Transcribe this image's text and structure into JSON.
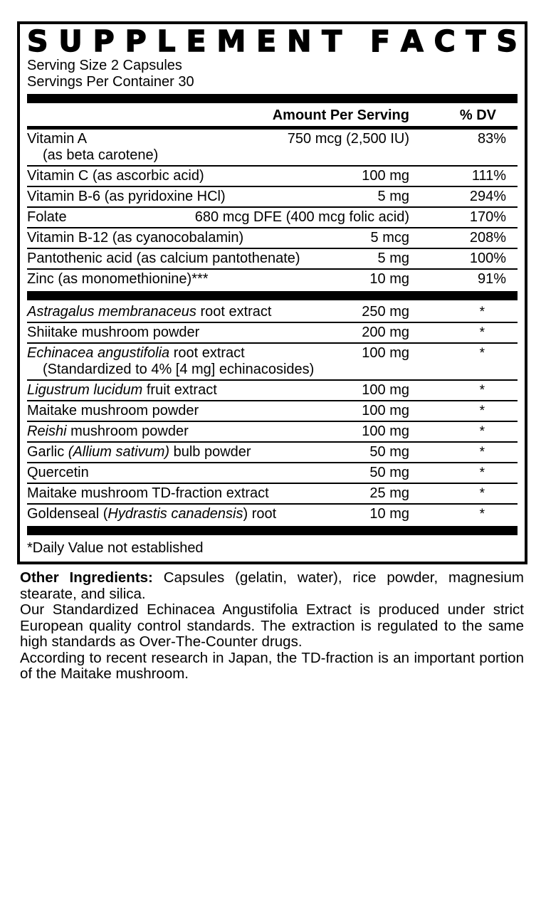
{
  "title": "SUPPLEMENT FACTS",
  "serving": {
    "size": "Serving Size 2 Capsules",
    "per_container": "Servings Per Container 30"
  },
  "table": {
    "headers": {
      "amount": "Amount Per Serving",
      "dv": "% DV"
    },
    "sections": [
      {
        "name": "vitamins-minerals",
        "rows": [
          {
            "name_parts": [
              {
                "text": "Vitamin A"
              }
            ],
            "sub": "(as beta carotene)",
            "amount": "750 mcg (2,500 IU)",
            "dv": "83%"
          },
          {
            "name_parts": [
              {
                "text": "Vitamin C (as ascorbic acid)"
              }
            ],
            "amount": "100 mg",
            "dv": "111%"
          },
          {
            "name_parts": [
              {
                "text": "Vitamin B-6 (as pyridoxine HCl)"
              }
            ],
            "amount": "5 mg",
            "dv": "294%"
          },
          {
            "name_parts": [
              {
                "text": "Folate"
              }
            ],
            "amount": "680 mcg DFE (400 mcg folic acid)",
            "dv": "170%"
          },
          {
            "name_parts": [
              {
                "text": "Vitamin B-12 (as cyanocobalamin)"
              }
            ],
            "amount": "5 mcg",
            "dv": "208%"
          },
          {
            "name_parts": [
              {
                "text": "Pantothenic acid (as calcium pantothenate)"
              }
            ],
            "amount": "5 mg",
            "dv": "100%"
          },
          {
            "name_parts": [
              {
                "text": "Zinc (as monomethionine)***"
              }
            ],
            "amount": "10 mg",
            "dv": "91%"
          }
        ]
      },
      {
        "name": "botanicals",
        "rows": [
          {
            "name_parts": [
              {
                "text": "Astragalus membranaceus",
                "italic": true
              },
              {
                "text": " root extract"
              }
            ],
            "amount": "250 mg",
            "dv": "*"
          },
          {
            "name_parts": [
              {
                "text": "Shiitake mushroom powder"
              }
            ],
            "amount": "200 mg",
            "dv": "*"
          },
          {
            "name_parts": [
              {
                "text": "Echinacea angustifolia",
                "italic": true
              },
              {
                "text": " root extract"
              }
            ],
            "sub": "(Standardized to 4% [4 mg] echinacosides)",
            "amount": "100 mg",
            "dv": "*"
          },
          {
            "name_parts": [
              {
                "text": "Ligustrum lucidum",
                "italic": true
              },
              {
                "text": " fruit extract"
              }
            ],
            "amount": "100 mg",
            "dv": "*"
          },
          {
            "name_parts": [
              {
                "text": "Maitake mushroom powder"
              }
            ],
            "amount": "100 mg",
            "dv": "*"
          },
          {
            "name_parts": [
              {
                "text": "Reishi",
                "italic": true
              },
              {
                "text": " mushroom powder"
              }
            ],
            "amount": "100 mg",
            "dv": "*"
          },
          {
            "name_parts": [
              {
                "text": "Garlic "
              },
              {
                "text": "(Allium sativum)",
                "italic": true
              },
              {
                "text": " bulb powder"
              }
            ],
            "amount": "50 mg",
            "dv": "*"
          },
          {
            "name_parts": [
              {
                "text": "Quercetin"
              }
            ],
            "amount": "50 mg",
            "dv": "*"
          },
          {
            "name_parts": [
              {
                "text": "Maitake mushroom TD-fraction extract"
              }
            ],
            "amount": "25 mg",
            "dv": "*"
          },
          {
            "name_parts": [
              {
                "text": "Goldenseal ("
              },
              {
                "text": "Hydrastis canadensis",
                "italic": true
              },
              {
                "text": ") root"
              }
            ],
            "amount": "10 mg",
            "dv": "*"
          }
        ]
      }
    ],
    "footnote": "*Daily Value not established"
  },
  "footer": {
    "paragraphs": [
      {
        "bold": "Other Ingredients:",
        "text": " Capsules (gelatin, water), rice powder, magnesium stearate, and silica."
      },
      {
        "text": "Our Standardized Echinacea Angustifolia Extract is produced under strict European quality control standards. The extraction is regulated to the same high standards as Over-The-Counter drugs."
      },
      {
        "text": "According to recent research in Japan, the TD-fraction is an important portion of the Maitake mushroom."
      }
    ]
  },
  "colors": {
    "ink": "#000000",
    "background": "#ffffff"
  }
}
